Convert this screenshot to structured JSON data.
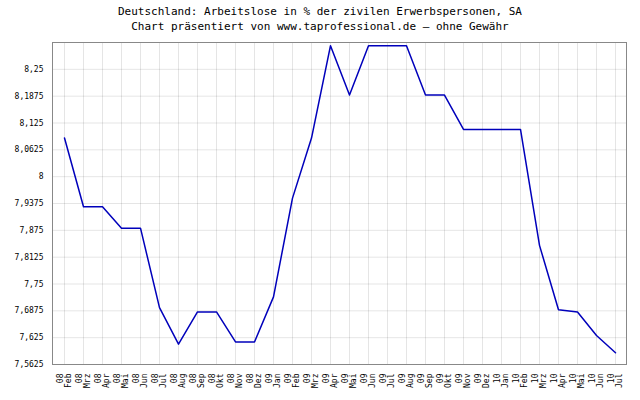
{
  "chart_data": {
    "type": "line",
    "title": "Deutschland: Arbeitslose in % der zivilen Erwerbspersonen, SA",
    "subtitle": "Chart präsentiert von www.taprofessional.de – ohne Gewähr",
    "categories": [
      "08\nFeb",
      "08\nMrz",
      "08\nApr",
      "08\nMai",
      "08\nJun",
      "08\nJul",
      "08\nAug",
      "08\nSep",
      "08\nOkt",
      "08\nNov",
      "08\nDez",
      "09\nJan",
      "09\nFeb",
      "09\nMrz",
      "09\nApr",
      "09\nMai",
      "09\nJun",
      "09\nJul",
      "09\nAug",
      "09\nSep",
      "09\nOkt",
      "09\nNov",
      "09\nDez",
      "10\nJan",
      "10\nFeb",
      "10\nMrz",
      "10\nApr",
      "10\nMai",
      "10\nJun",
      "10\nJul"
    ],
    "values": [
      8.09,
      7.93,
      7.93,
      7.88,
      7.88,
      7.695,
      7.61,
      7.685,
      7.685,
      7.615,
      7.615,
      7.72,
      7.95,
      8.09,
      8.305,
      8.19,
      8.305,
      8.305,
      8.305,
      8.19,
      8.19,
      8.11,
      8.11,
      8.11,
      8.11,
      7.84,
      7.69,
      7.685,
      7.63,
      7.59
    ],
    "color": "#0000bb",
    "ylim": [
      7.5625,
      8.3125
    ],
    "yticks": [
      {
        "value": 7.5625,
        "label": "7,5625"
      },
      {
        "value": 7.625,
        "label": "7,625"
      },
      {
        "value": 7.6875,
        "label": "7,6875"
      },
      {
        "value": 7.75,
        "label": "7,75"
      },
      {
        "value": 7.8125,
        "label": "7,8125"
      },
      {
        "value": 7.875,
        "label": "7,875"
      },
      {
        "value": 7.9375,
        "label": "7,9375"
      },
      8,
      {
        "value": 8.0625,
        "label": "8,0625"
      },
      {
        "value": 8.125,
        "label": "8,125"
      },
      {
        "value": 8.1875,
        "label": "8,1875"
      },
      {
        "value": 8.25,
        "label": "8,25"
      },
      {
        "value": 8.3125,
        "label": null
      }
    ],
    "grid": true
  }
}
